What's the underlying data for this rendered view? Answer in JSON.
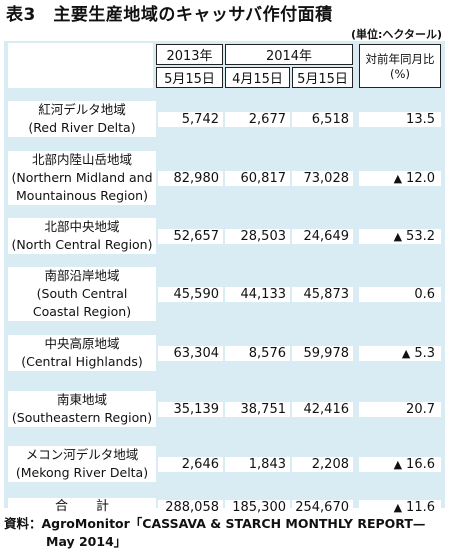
{
  "title": "表3　主要生産地域のキャッサバ作付面積",
  "unit": "(単位:ヘクタール)",
  "header": {
    "year_2013": "2013年",
    "year_2014": "2014年",
    "date_2013_may": "5月15日",
    "date_2014_apr": "4月15日",
    "date_2014_may": "5月15日",
    "ratio": "対前年同月比(%)"
  },
  "rows": [
    {
      "name_jp": "紅河デルタ地域",
      "name_en": [
        "(Red River Delta)"
      ],
      "v2013_may": "5,742",
      "v2014_apr": "2,677",
      "v2014_may": "6,518",
      "ratio_neg": false,
      "ratio": "13.5"
    },
    {
      "name_jp": "北部内陸山岳地域",
      "name_en": [
        "(Northern Midland and",
        "Mountainous Region)"
      ],
      "v2013_may": "82,980",
      "v2014_apr": "60,817",
      "v2014_may": "73,028",
      "ratio_neg": true,
      "ratio": "12.0"
    },
    {
      "name_jp": "北部中央地域",
      "name_en": [
        "(North Central Region)"
      ],
      "v2013_may": "52,657",
      "v2014_apr": "28,503",
      "v2014_may": "24,649",
      "ratio_neg": true,
      "ratio": "53.2"
    },
    {
      "name_jp": "南部沿岸地域",
      "name_en": [
        "(South Central",
        "Coastal Region)"
      ],
      "v2013_may": "45,590",
      "v2014_apr": "44,133",
      "v2014_may": "45,873",
      "ratio_neg": false,
      "ratio": "0.6"
    },
    {
      "name_jp": "中央高原地域",
      "name_en": [
        "(Central Highlands)"
      ],
      "v2013_may": "63,304",
      "v2014_apr": "8,576",
      "v2014_may": "59,978",
      "ratio_neg": true,
      "ratio": "5.3"
    },
    {
      "name_jp": "南東地域",
      "name_en": [
        "(Southeastern Region)"
      ],
      "v2013_may": "35,139",
      "v2014_apr": "38,751",
      "v2014_may": "42,416",
      "ratio_neg": false,
      "ratio": "20.7"
    },
    {
      "name_jp": "メコン河デルタ地域",
      "name_en": [
        "(Mekong River Delta)"
      ],
      "v2013_may": "2,646",
      "v2014_apr": "1,843",
      "v2014_may": "2,208",
      "ratio_neg": true,
      "ratio": "16.6"
    }
  ],
  "total": {
    "label": "合計",
    "v2013_may": "288,058",
    "v2014_apr": "185,300",
    "v2014_may": "254,670",
    "ratio_neg": true,
    "ratio": "11.6"
  },
  "negative_marker": "▲",
  "source_line1": "資料：AgroMonitor「CASSAVA & STARCH MONTHLY REPORT—",
  "source_line2": "May 2014」"
}
